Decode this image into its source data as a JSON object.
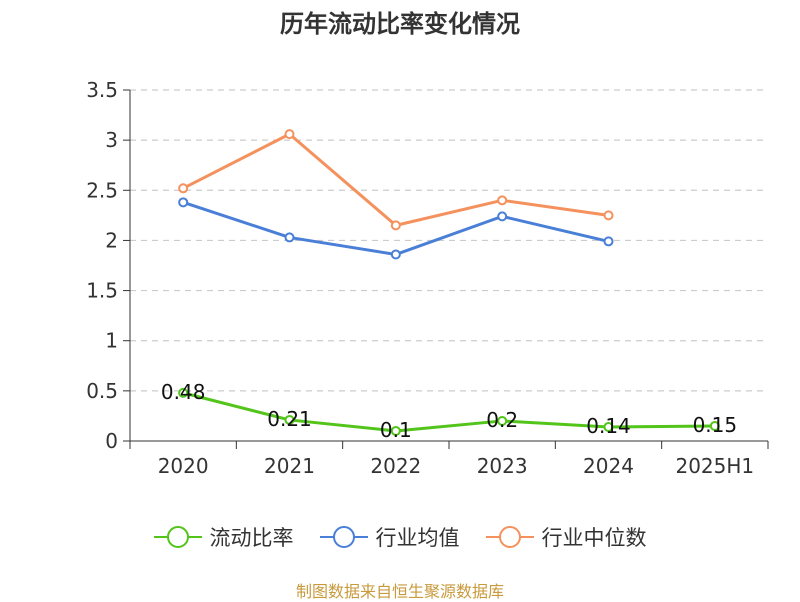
{
  "chart_data": {
    "type": "line",
    "title": "历年流动比率变化情况",
    "categories": [
      "2020",
      "2021",
      "2022",
      "2023",
      "2024",
      "2025H1"
    ],
    "ylim": [
      0,
      3.5
    ],
    "yticks": [
      "0",
      "0.5",
      "1",
      "1.5",
      "2",
      "2.5",
      "3",
      "3.5"
    ],
    "grid": true,
    "legend_position": "bottom",
    "series": [
      {
        "name": "流动比率",
        "color": "#52c41a",
        "values": [
          0.48,
          0.21,
          0.1,
          0.2,
          0.14,
          0.15
        ],
        "labels": [
          "0.48",
          "0.21",
          "0.1",
          "0.2",
          "0.14",
          "0.15"
        ]
      },
      {
        "name": "行业均值",
        "color": "#4a7fd8",
        "values": [
          2.38,
          2.03,
          1.86,
          2.24,
          1.99,
          null
        ]
      },
      {
        "name": "行业中位数",
        "color": "#f4915d",
        "values": [
          2.52,
          3.06,
          2.15,
          2.4,
          2.25,
          null
        ]
      }
    ]
  },
  "source_text": "制图数据来自恒生聚源数据库"
}
